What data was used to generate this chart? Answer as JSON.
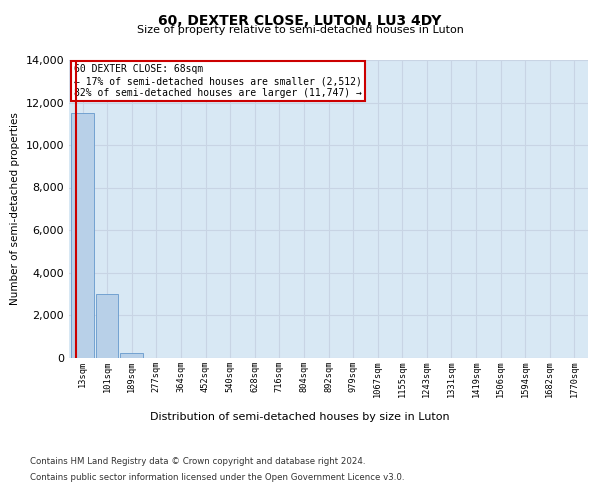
{
  "title": "60, DEXTER CLOSE, LUTON, LU3 4DY",
  "subtitle": "Size of property relative to semi-detached houses in Luton",
  "xlabel": "Distribution of semi-detached houses by size in Luton",
  "ylabel": "Number of semi-detached properties",
  "property_label": "60 DEXTER CLOSE: 68sqm",
  "pct_smaller": 17,
  "count_smaller": 2512,
  "pct_larger": 82,
  "count_larger": 11747,
  "bin_labels": [
    "13sqm",
    "101sqm",
    "189sqm",
    "277sqm",
    "364sqm",
    "452sqm",
    "540sqm",
    "628sqm",
    "716sqm",
    "804sqm",
    "892sqm",
    "979sqm",
    "1067sqm",
    "1155sqm",
    "1243sqm",
    "1331sqm",
    "1419sqm",
    "1506sqm",
    "1594sqm",
    "1682sqm",
    "1770sqm"
  ],
  "bar_heights": [
    11500,
    3000,
    200,
    0,
    0,
    0,
    0,
    0,
    0,
    0,
    0,
    0,
    0,
    0,
    0,
    0,
    0,
    0,
    0,
    0,
    0
  ],
  "bar_color": "#b8d0e8",
  "bar_edgecolor": "#6699cc",
  "property_line_color": "#cc0000",
  "annotation_box_color": "#cc0000",
  "grid_color": "#c8d4e4",
  "background_color": "#d8e8f4",
  "ylim": [
    0,
    14000
  ],
  "yticks": [
    0,
    2000,
    4000,
    6000,
    8000,
    10000,
    12000,
    14000
  ],
  "property_bin_index": 0,
  "footer_line1": "Contains HM Land Registry data © Crown copyright and database right 2024.",
  "footer_line2": "Contains public sector information licensed under the Open Government Licence v3.0."
}
